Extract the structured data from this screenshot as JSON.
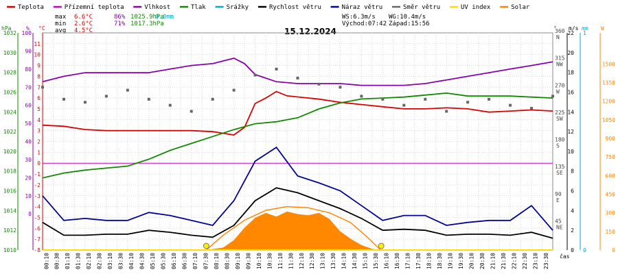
{
  "legend": [
    {
      "label": "Teplota",
      "color": "#dd0000"
    },
    {
      "label": "Přízemní teplota",
      "color": "#cc00cc"
    },
    {
      "label": "Vlhkost",
      "color": "#8800aa"
    },
    {
      "label": "Tlak",
      "color": "#118800"
    },
    {
      "label": "Srážky",
      "color": "#00aacc"
    },
    {
      "label": "Rychlost větru",
      "color": "#000000"
    },
    {
      "label": "Náraz větru",
      "color": "#000099"
    },
    {
      "label": "Směr větru",
      "color": "#666666"
    },
    {
      "label": "UV index",
      "color": "#ffdd00"
    },
    {
      "label": "Solar",
      "color": "#ff8800"
    }
  ],
  "stats": {
    "max_label": "max",
    "max_temp": "6.6°C",
    "max_hum": "86%",
    "max_press": "1025.9hPa",
    "max_rain": "0.0mm",
    "min_label": "min",
    "min_temp": "2.6°C",
    "min_hum": "71%",
    "min_press": "1017.3hPa",
    "avg_label": "avg",
    "avg_temp": "4.5°C",
    "ws": "WS:6.3m/s",
    "wg": "WG:10.4m/s",
    "sunrise": "Východ:07:42",
    "sunset": "Západ:15:56"
  },
  "chart_data": {
    "type": "line",
    "title": "15.12.2024",
    "xlabel": "čas",
    "x_ticks": [
      "00:10",
      "00:30",
      "01:10",
      "01:30",
      "02:10",
      "02:30",
      "03:10",
      "03:30",
      "04:10",
      "04:30",
      "05:10",
      "05:30",
      "06:10",
      "06:30",
      "07:10",
      "07:30",
      "08:10",
      "08:30",
      "09:10",
      "09:30",
      "10:10",
      "10:30",
      "11:10",
      "11:30",
      "12:10",
      "12:30",
      "13:10",
      "13:30",
      "14:10",
      "14:30",
      "15:10",
      "15:30",
      "16:10",
      "16:30",
      "17:10",
      "17:30",
      "18:10",
      "18:30",
      "19:10",
      "19:30",
      "20:10",
      "20:30",
      "21:10",
      "21:30",
      "22:10",
      "22:30",
      "23:10",
      "23:30"
    ],
    "axes": {
      "pressure": {
        "label": "hPa",
        "color": "#118800",
        "range": [
          1010,
          1032
        ],
        "ticks": [
          1010,
          1012,
          1014,
          1016,
          1018,
          1020,
          1022,
          1024,
          1026,
          1028,
          1030,
          1032
        ]
      },
      "humidity": {
        "label": "%",
        "color": "#8800aa",
        "range": [
          -20,
          100
        ],
        "ticks": [
          0,
          10,
          20,
          30,
          40,
          50,
          60,
          70,
          80,
          90,
          100
        ]
      },
      "temperature": {
        "label": "°C",
        "color": "#dd0000",
        "range": [
          -8,
          12
        ],
        "ticks": [
          -8,
          -7,
          -6,
          -5,
          -4,
          -3,
          -2,
          -1,
          0,
          1,
          2,
          3,
          4,
          5,
          6,
          7,
          8,
          9,
          10,
          11
        ]
      },
      "direction": {
        "label": "°",
        "color": "#444444",
        "range": [
          0,
          360
        ],
        "ticks": [
          {
            "v": 360,
            "t": "360",
            "d": "N"
          },
          {
            "v": 315,
            "t": "315",
            "d": "NW"
          },
          {
            "v": 270,
            "t": "270",
            "d": "W"
          },
          {
            "v": 225,
            "t": "225",
            "d": "SW"
          },
          {
            "v": 180,
            "t": "180",
            "d": "S"
          },
          {
            "v": 135,
            "t": "135",
            "d": "SE"
          },
          {
            "v": 90,
            "t": "90",
            "d": "E"
          },
          {
            "v": 45,
            "t": "45",
            "d": "NE"
          }
        ]
      },
      "wind": {
        "label": "m/s",
        "color": "#000000",
        "range": [
          0,
          22
        ],
        "ticks": [
          0,
          2,
          4,
          6,
          8,
          10,
          12,
          14,
          16,
          18,
          20,
          22
        ]
      },
      "rain": {
        "label": "mm",
        "color": "#00aacc",
        "range": [
          0,
          1
        ],
        "ticks": [
          0,
          1
        ]
      },
      "solar": {
        "label": "W",
        "color": "#ff8800",
        "range": [
          0,
          1750
        ],
        "ticks": [
          0,
          150,
          300,
          450,
          600,
          750,
          900,
          1050,
          1200,
          1350,
          1500
        ]
      }
    },
    "series": [
      {
        "name": "Teplota",
        "axis": "temperature",
        "color": "#dd0000",
        "x": [
          0,
          1,
          2,
          3,
          4,
          5,
          6,
          7,
          8,
          9,
          9.5,
          10,
          10.5,
          11,
          11.5,
          12,
          13,
          14,
          15,
          16,
          17,
          18,
          19,
          20,
          21,
          22,
          23,
          24
        ],
        "y": [
          3.5,
          3.4,
          3.1,
          3.0,
          3.0,
          3.0,
          3.0,
          3.0,
          2.9,
          2.6,
          3.3,
          5.5,
          6.0,
          6.6,
          6.2,
          6.1,
          5.9,
          5.6,
          5.4,
          5.2,
          5.0,
          5.0,
          5.1,
          5.0,
          4.7,
          4.8,
          4.9,
          4.8
        ]
      },
      {
        "name": "Vlhkost",
        "axis": "humidity",
        "color": "#8800aa",
        "x": [
          0,
          1,
          2,
          3,
          4,
          5,
          6,
          7,
          8,
          9,
          9.5,
          10,
          11,
          12,
          13,
          14,
          15,
          16,
          17,
          18,
          19,
          20,
          21,
          22,
          23,
          24
        ],
        "y": [
          73,
          76,
          78,
          78,
          78,
          78,
          80,
          82,
          83,
          86,
          83,
          77,
          73,
          72,
          72,
          72,
          71,
          71,
          71,
          72,
          74,
          76,
          78,
          80,
          82,
          84
        ]
      },
      {
        "name": "Tlak",
        "axis": "pressure",
        "color": "#118800",
        "x": [
          0,
          1,
          2,
          3,
          4,
          5,
          6,
          7,
          8,
          9,
          10,
          11,
          12,
          13,
          14,
          15,
          16,
          17,
          18,
          19,
          20,
          21,
          22,
          23,
          24
        ],
        "y": [
          1017.3,
          1017.8,
          1018.1,
          1018.3,
          1018.5,
          1019.2,
          1020.1,
          1020.8,
          1021.5,
          1022.2,
          1022.8,
          1023.0,
          1023.4,
          1024.3,
          1024.9,
          1025.3,
          1025.4,
          1025.5,
          1025.7,
          1025.9,
          1025.6,
          1025.6,
          1025.6,
          1025.5,
          1025.4
        ]
      },
      {
        "name": "Rychlost větru",
        "axis": "wind",
        "color": "#000000",
        "x": [
          0,
          1,
          2,
          3,
          4,
          5,
          6,
          7,
          8,
          9,
          10,
          11,
          12,
          13,
          14,
          15,
          16,
          17,
          18,
          19,
          20,
          21,
          22,
          23,
          24
        ],
        "y": [
          2.8,
          1.5,
          1.5,
          1.6,
          1.6,
          2.0,
          1.8,
          1.5,
          1.3,
          2.5,
          5.0,
          6.3,
          5.8,
          5.0,
          4.2,
          3.2,
          2.0,
          2.1,
          2.0,
          1.5,
          1.6,
          1.6,
          1.5,
          1.8,
          1.2
        ]
      },
      {
        "name": "Náraz větru",
        "axis": "wind",
        "color": "#000099",
        "x": [
          0,
          1,
          2,
          3,
          4,
          5,
          6,
          7,
          8,
          9,
          10,
          11,
          12,
          13,
          14,
          15,
          16,
          17,
          18,
          19,
          20,
          21,
          22,
          23,
          24
        ],
        "y": [
          5.5,
          3.0,
          3.2,
          3.0,
          3.0,
          3.8,
          3.5,
          3.0,
          2.5,
          5.0,
          9.0,
          10.4,
          7.5,
          6.8,
          6.0,
          4.5,
          3.0,
          3.5,
          3.5,
          2.5,
          2.8,
          3.0,
          3.0,
          4.5,
          2.0
        ]
      },
      {
        "name": "Směr větru",
        "axis": "direction",
        "color": "#666666",
        "x": [
          0,
          1,
          2,
          3,
          4,
          5,
          6,
          7,
          8,
          9,
          10,
          11,
          12,
          13,
          14,
          15,
          16,
          17,
          18,
          19,
          20,
          21,
          22,
          23,
          24
        ],
        "y": [
          270,
          250,
          245,
          255,
          265,
          250,
          240,
          230,
          250,
          265,
          290,
          300,
          285,
          275,
          270,
          255,
          250,
          240,
          250,
          230,
          245,
          250,
          240,
          235,
          255
        ]
      },
      {
        "name": "Solar",
        "axis": "solar",
        "color": "#ff8800",
        "x": [
          7.7,
          8.5,
          9,
          9.5,
          10,
          10.5,
          11,
          11.5,
          12,
          12.5,
          13,
          13.5,
          14,
          14.5,
          15,
          15.5,
          15.9
        ],
        "y": [
          0,
          20,
          80,
          180,
          260,
          300,
          270,
          310,
          290,
          280,
          300,
          250,
          150,
          90,
          40,
          10,
          0
        ]
      },
      {
        "name": "Solar",
        "axis": "solar",
        "color": "#ff8800",
        "x": [
          7.7,
          8.5,
          9.5,
          10.5,
          11.5,
          12.5,
          13.5,
          14.5,
          15.3,
          15.9
        ],
        "y": [
          0,
          120,
          240,
          320,
          350,
          340,
          300,
          220,
          100,
          0
        ]
      }
    ],
    "sun_markers": [
      {
        "x": 7.7
      },
      {
        "x": 15.93
      }
    ]
  }
}
